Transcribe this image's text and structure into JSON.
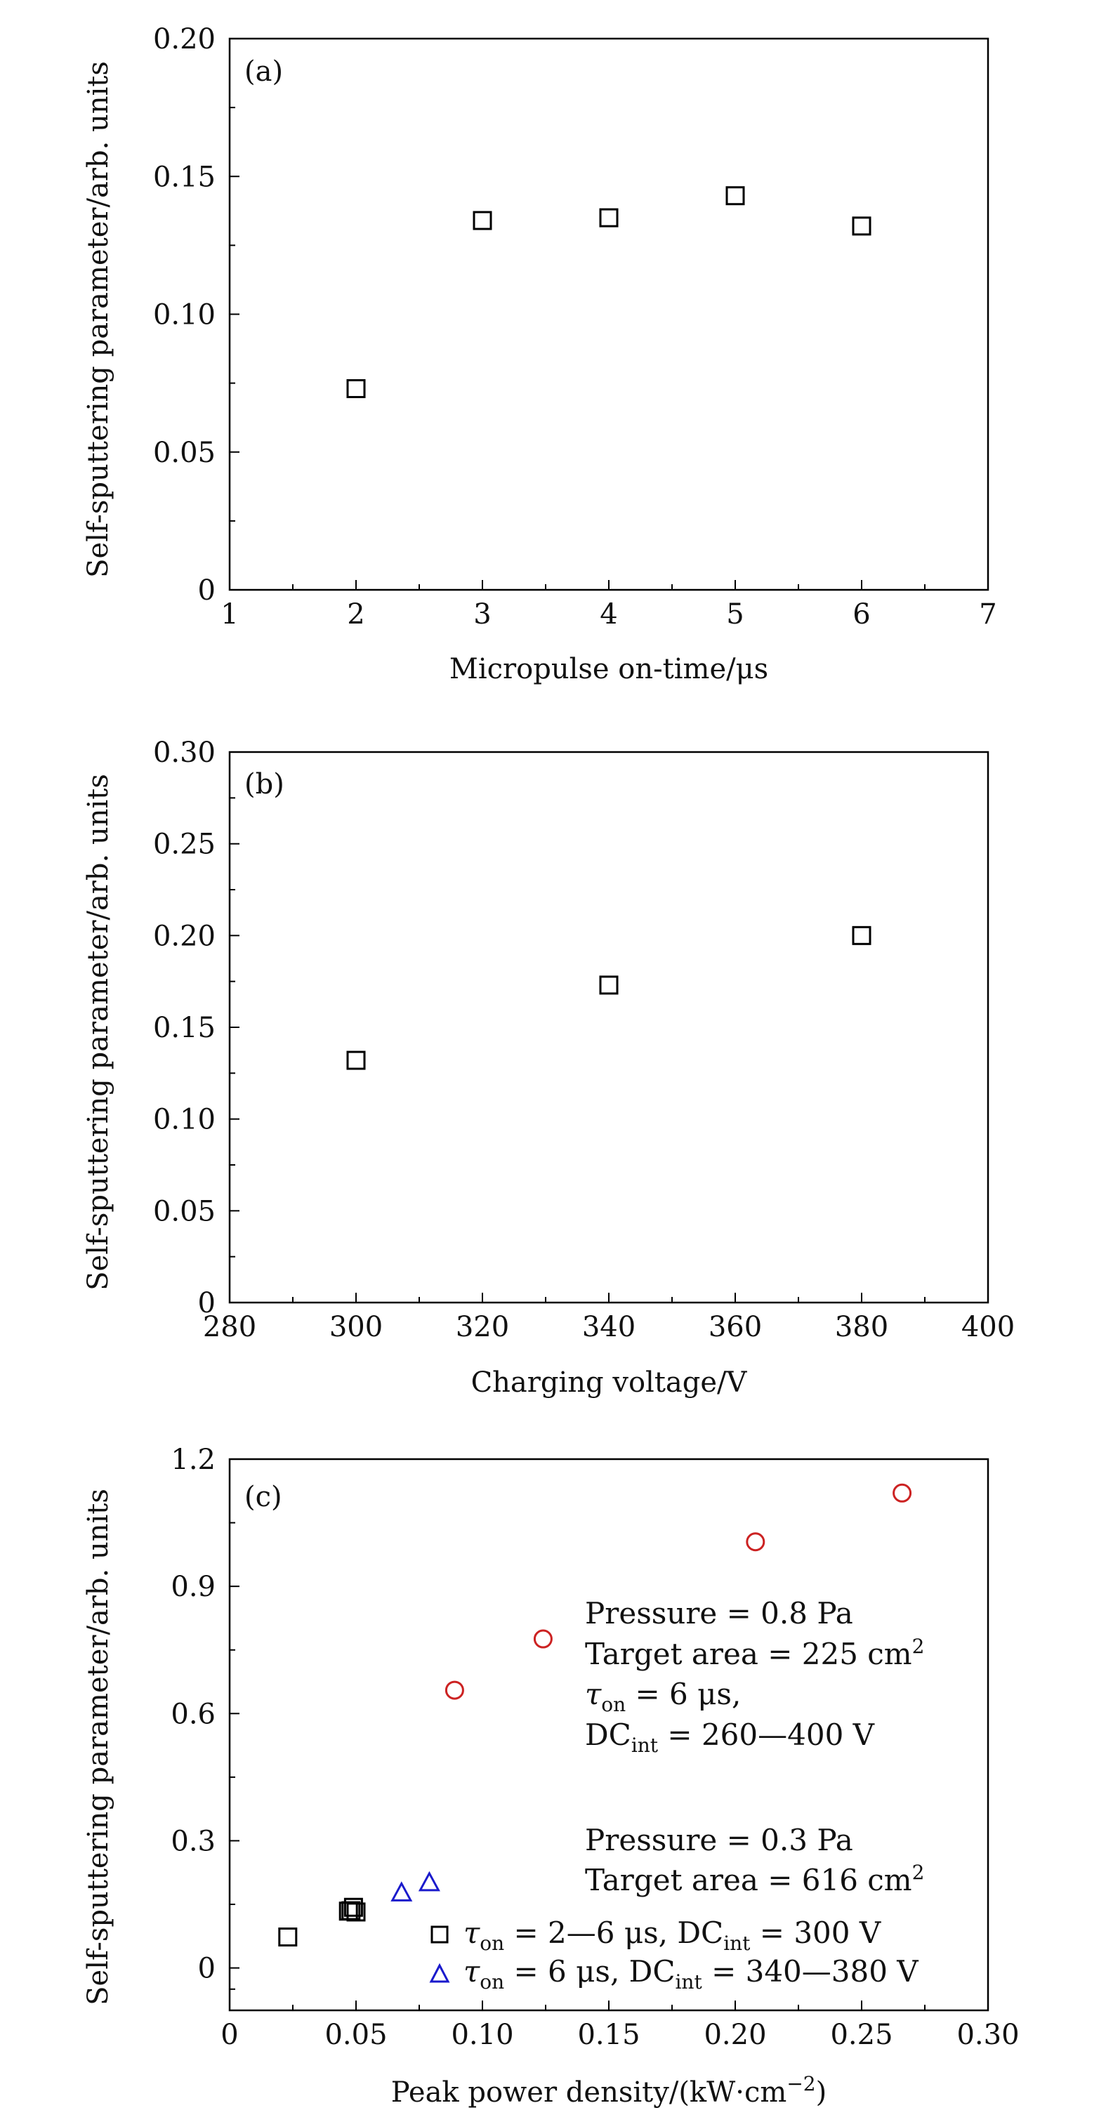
{
  "chart_data": [
    {
      "type": "scatter",
      "panel": "(a)",
      "xlabel": "Micropulse on-time/μs",
      "ylabel": "Self-sputtering parameter/arb. units",
      "xlim": [
        1,
        7
      ],
      "ylim": [
        0,
        0.2
      ],
      "xticks": [
        1,
        2,
        3,
        4,
        5,
        6,
        7
      ],
      "xtick_labels": [
        "1",
        "2",
        "3",
        "4",
        "5",
        "6",
        "7"
      ],
      "yticks": [
        0,
        0.05,
        0.1,
        0.15,
        0.2
      ],
      "ytick_labels": [
        "0",
        "0.05",
        "0.10",
        "0.15",
        "0.20"
      ],
      "grid": false,
      "series": [
        {
          "marker": "square",
          "color": "#000000",
          "x": [
            2,
            3,
            4,
            5,
            6
          ],
          "y": [
            0.073,
            0.134,
            0.135,
            0.143,
            0.132
          ]
        }
      ]
    },
    {
      "type": "scatter",
      "panel": "(b)",
      "xlabel": "Charging voltage/V",
      "ylabel": "Self-sputtering parameter/arb. units",
      "xlim": [
        280,
        400
      ],
      "ylim": [
        0,
        0.3
      ],
      "xticks": [
        280,
        300,
        320,
        340,
        360,
        380,
        400
      ],
      "xtick_labels": [
        "280",
        "300",
        "320",
        "340",
        "360",
        "380",
        "400"
      ],
      "yticks": [
        0,
        0.05,
        0.1,
        0.15,
        0.2,
        0.25,
        0.3
      ],
      "ytick_labels": [
        "0",
        "0.05",
        "0.10",
        "0.15",
        "0.20",
        "0.25",
        "0.30"
      ],
      "grid": false,
      "series": [
        {
          "marker": "square",
          "color": "#000000",
          "x": [
            300,
            340,
            380
          ],
          "y": [
            0.132,
            0.173,
            0.2
          ]
        }
      ]
    },
    {
      "type": "scatter",
      "panel": "(c)",
      "xlabel": "Peak power density/(kW·cm",
      "xlabel_sup": "−2",
      "xlabel_end": ")",
      "ylabel": "Self-sputtering parameter/arb. units",
      "xlim": [
        0,
        0.3
      ],
      "ylim": [
        -0.1,
        1.2
      ],
      "xticks": [
        0,
        0.05,
        0.1,
        0.15,
        0.2,
        0.25,
        0.3
      ],
      "xtick_labels": [
        "0",
        "0.05",
        "0.10",
        "0.15",
        "0.20",
        "0.25",
        "0.30"
      ],
      "yticks": [
        0,
        0.3,
        0.6,
        0.9,
        1.2
      ],
      "ytick_labels": [
        "0",
        "0.3",
        "0.6",
        "0.9",
        "1.2"
      ],
      "grid": false,
      "series": [
        {
          "marker": "circle",
          "color": "#cc2222",
          "x": [
            0.089,
            0.124,
            0.208,
            0.266
          ],
          "y": [
            0.655,
            0.776,
            1.005,
            1.12
          ]
        },
        {
          "marker": "square",
          "color": "#000000",
          "x": [
            0.023,
            0.047,
            0.048,
            0.049,
            0.05
          ],
          "y": [
            0.073,
            0.134,
            0.135,
            0.143,
            0.132
          ]
        },
        {
          "marker": "triangle",
          "color": "#1a1acc",
          "x": [
            0.068,
            0.079
          ],
          "y": [
            0.176,
            0.2
          ]
        }
      ],
      "annotations": {
        "group1": {
          "pressure": "Pressure = 0.8 Pa",
          "area": "Target area = 225 cm",
          "area_sup": "2",
          "tau_sym": "τ",
          "tau_sub": "on",
          "tau_rest": " = 6 μs,",
          "dc_main": "DC",
          "dc_sub": "int",
          "dc_rest": " = 260—400 V"
        },
        "group2": {
          "pressure": "Pressure = 0.3 Pa",
          "area": "Target area = 616 cm",
          "area_sup": "2"
        },
        "legend": [
          {
            "marker": "square",
            "color": "#000000",
            "tau_sym": "τ",
            "tau_sub": "on",
            "tau_rest": " = 2—6 μs, DC",
            "dc_sub": "int",
            "dc_rest": " = 300 V"
          },
          {
            "marker": "triangle",
            "color": "#1a1acc",
            "tau_sym": "τ",
            "tau_sub": "on",
            "tau_rest": " = 6 μs, DC",
            "dc_sub": "int",
            "dc_rest": " = 340—380 V"
          }
        ]
      }
    }
  ]
}
